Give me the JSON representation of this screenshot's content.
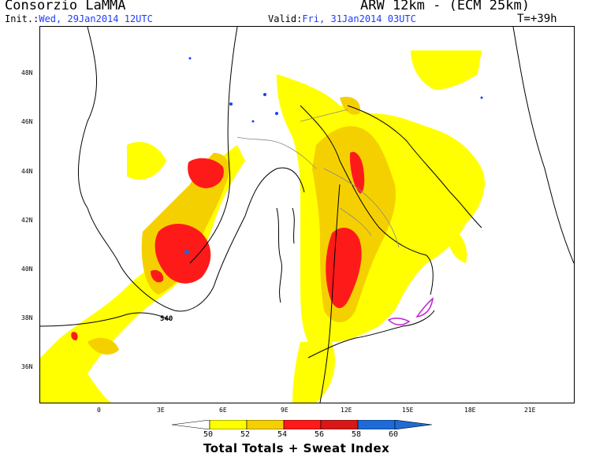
{
  "header": {
    "title_left": "Consorzio LaMMA",
    "title_right": "ARW 12km - (ECM 25km)",
    "init_label": "Init.:",
    "init_value": "Wed, 29Jan2014 12UTC",
    "valid_label": "Valid:",
    "valid_value": "Fri, 31Jan2014 03UTC",
    "lead_time": "T=+39h"
  },
  "map": {
    "lat_labels": [
      "48N",
      "46N",
      "44N",
      "42N",
      "40N",
      "38N",
      "36N"
    ],
    "lon_labels": [
      "0",
      "3E",
      "6E",
      "9E",
      "12E",
      "15E",
      "18E",
      "21E"
    ],
    "contour_label": "540",
    "colors": {
      "yellow": "#ffff00",
      "gold": "#f5d000",
      "red": "#ff1a1a",
      "darkred": "#d81818",
      "blue": "#1e6ad6",
      "coast": "#000000",
      "border": "#888888",
      "lakes": "#1e3cff",
      "magenta": "#c020d0"
    }
  },
  "legend": {
    "levels": [
      "50",
      "52",
      "54",
      "56",
      "58",
      "60"
    ],
    "colors": [
      "#ffff00",
      "#f5d000",
      "#ff1a1a",
      "#d81818",
      "#1e6ad6"
    ],
    "title": "Total Totals + Sweat Index"
  }
}
